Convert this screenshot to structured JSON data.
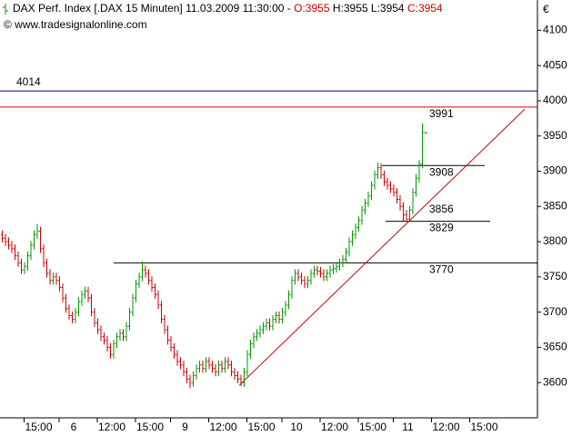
{
  "chart_data": {
    "type": "ohlc",
    "header": {
      "title": "DAX Perf. Index [.DAX  15 Minuten]",
      "date": "11.03.2009 11:30:00",
      "separator": "-",
      "ohlc": [
        "O:3955",
        "H:3955",
        "L:3954",
        "C:3954"
      ],
      "ohlc_colors": [
        "#cc0000",
        "#000000",
        "#000000",
        "#cc0000"
      ]
    },
    "source": "© www.tradesignalonline.com",
    "currency": "€",
    "up_color": "#009900",
    "down_color": "#cc0000",
    "ylim": [
      3550,
      4143
    ],
    "yticks": [
      3600,
      3650,
      3700,
      3750,
      3800,
      3850,
      3900,
      3950,
      4000,
      4050,
      4100
    ],
    "categories": [
      null,
      null,
      null,
      null,
      null,
      null,
      null,
      "15:00",
      null,
      null,
      null,
      null,
      null,
      null,
      null,
      null,
      null,
      null,
      "6",
      null,
      null,
      null,
      null,
      null,
      null,
      null,
      null,
      null,
      null,
      null,
      "12:00",
      null,
      null,
      null,
      null,
      null,
      null,
      null,
      null,
      null,
      null,
      null,
      "15:00",
      null,
      null,
      null,
      null,
      null,
      null,
      null,
      null,
      null,
      null,
      "9",
      null,
      null,
      null,
      null,
      null,
      null,
      null,
      null,
      null,
      null,
      null,
      "12:00",
      null,
      null,
      null,
      null,
      null,
      null,
      null,
      null,
      null,
      null,
      null,
      "15:00",
      null,
      null,
      null,
      null,
      null,
      null,
      null,
      null,
      null,
      null,
      "10",
      null,
      null,
      null,
      null,
      null,
      null,
      null,
      null,
      null,
      null,
      null,
      "12:00",
      null,
      null,
      null,
      null,
      null,
      null,
      null,
      null,
      null,
      null,
      null,
      "15:00",
      null,
      null,
      null,
      null,
      null,
      null,
      null,
      null,
      null,
      null,
      "11",
      null,
      null,
      null,
      null,
      null,
      null,
      null,
      null,
      null,
      null,
      null,
      "12:00",
      null,
      null,
      null,
      null,
      null,
      null,
      null,
      null,
      null,
      null,
      null,
      "15:00"
    ],
    "open": [
      3810,
      3805,
      3800,
      3795,
      3790,
      3780,
      3770,
      3760,
      3765,
      3780,
      3795,
      3810,
      3815,
      3790,
      3770,
      3755,
      3745,
      3750,
      3745,
      3735,
      3720,
      3705,
      3695,
      3690,
      3700,
      3715,
      3725,
      3730,
      3720,
      3700,
      3685,
      3675,
      3665,
      3660,
      3650,
      3640,
      3655,
      3665,
      3670,
      3665,
      3680,
      3700,
      3720,
      3740,
      3750,
      3760,
      3755,
      3745,
      3735,
      3725,
      3710,
      3690,
      3675,
      3660,
      3650,
      3640,
      3630,
      3625,
      3615,
      3605,
      3600,
      3610,
      3620,
      3625,
      3620,
      3630,
      3625,
      3620,
      3615,
      3625,
      3620,
      3630,
      3625,
      3615,
      3610,
      3605,
      3600,
      3615,
      3640,
      3655,
      3665,
      3670,
      3675,
      3680,
      3685,
      3680,
      3690,
      3695,
      3690,
      3700,
      3710,
      3725,
      3745,
      3755,
      3750,
      3745,
      3740,
      3745,
      3755,
      3760,
      3758,
      3755,
      3750,
      3755,
      3760,
      3762,
      3765,
      3770,
      3775,
      3785,
      3800,
      3810,
      3820,
      3830,
      3845,
      3855,
      3865,
      3880,
      3895,
      3905,
      3895,
      3885,
      3880,
      3875,
      3870,
      3860,
      3850,
      3838,
      3832,
      3845,
      3870,
      3890,
      3910,
      3955,
      null,
      null,
      null,
      null,
      null,
      null,
      null,
      null,
      null,
      null,
      null,
      null,
      null,
      null
    ],
    "high": [
      3816,
      3811,
      3806,
      3801,
      3796,
      3786,
      3776,
      3771,
      3786,
      3801,
      3816,
      3825,
      3821,
      3796,
      3776,
      3761,
      3756,
      3756,
      3751,
      3741,
      3726,
      3711,
      3701,
      3706,
      3721,
      3731,
      3736,
      3736,
      3726,
      3706,
      3691,
      3681,
      3671,
      3666,
      3656,
      3661,
      3671,
      3676,
      3676,
      3686,
      3706,
      3726,
      3746,
      3756,
      3772,
      3766,
      3761,
      3751,
      3741,
      3731,
      3716,
      3696,
      3681,
      3666,
      3656,
      3646,
      3636,
      3631,
      3621,
      3611,
      3616,
      3626,
      3631,
      3631,
      3636,
      3636,
      3631,
      3626,
      3631,
      3631,
      3636,
      3636,
      3631,
      3621,
      3616,
      3611,
      3621,
      3646,
      3661,
      3671,
      3676,
      3681,
      3686,
      3691,
      3691,
      3696,
      3701,
      3701,
      3706,
      3716,
      3731,
      3751,
      3761,
      3761,
      3756,
      3751,
      3751,
      3761,
      3766,
      3766,
      3764,
      3761,
      3761,
      3766,
      3768,
      3771,
      3776,
      3781,
      3791,
      3806,
      3816,
      3826,
      3836,
      3851,
      3861,
      3871,
      3886,
      3901,
      3912,
      3911,
      3901,
      3891,
      3886,
      3881,
      3876,
      3866,
      3856,
      3845,
      3851,
      3876,
      3896,
      3916,
      3968,
      3955,
      null,
      null,
      null,
      null,
      null,
      null,
      null,
      null,
      null,
      null,
      null,
      null,
      null,
      null
    ],
    "low": [
      3799,
      3794,
      3789,
      3784,
      3774,
      3764,
      3754,
      3754,
      3759,
      3774,
      3789,
      3804,
      3784,
      3764,
      3749,
      3739,
      3739,
      3739,
      3729,
      3714,
      3699,
      3689,
      3684,
      3684,
      3694,
      3709,
      3719,
      3714,
      3694,
      3679,
      3669,
      3659,
      3654,
      3644,
      3634,
      3634,
      3649,
      3659,
      3659,
      3659,
      3674,
      3694,
      3714,
      3734,
      3744,
      3749,
      3739,
      3729,
      3719,
      3704,
      3684,
      3669,
      3654,
      3644,
      3634,
      3624,
      3619,
      3609,
      3599,
      3592,
      3594,
      3604,
      3614,
      3614,
      3614,
      3619,
      3614,
      3609,
      3609,
      3614,
      3614,
      3619,
      3609,
      3604,
      3599,
      3595,
      3594,
      3609,
      3634,
      3649,
      3659,
      3664,
      3669,
      3674,
      3674,
      3674,
      3684,
      3684,
      3684,
      3694,
      3704,
      3719,
      3739,
      3744,
      3739,
      3734,
      3734,
      3739,
      3749,
      3752,
      3749,
      3744,
      3744,
      3749,
      3754,
      3756,
      3759,
      3764,
      3769,
      3779,
      3794,
      3804,
      3814,
      3824,
      3839,
      3849,
      3859,
      3874,
      3889,
      3889,
      3879,
      3874,
      3869,
      3864,
      3854,
      3844,
      3829,
      3828,
      3829,
      3839,
      3864,
      3884,
      3904,
      3954,
      null,
      null,
      null,
      null,
      null,
      null,
      null,
      null,
      null,
      null,
      null,
      null,
      null,
      null
    ],
    "close": [
      3805,
      3800,
      3795,
      3790,
      3780,
      3770,
      3760,
      3765,
      3780,
      3795,
      3810,
      3815,
      3790,
      3770,
      3755,
      3745,
      3750,
      3745,
      3735,
      3720,
      3705,
      3695,
      3690,
      3700,
      3715,
      3725,
      3730,
      3720,
      3700,
      3685,
      3675,
      3665,
      3660,
      3650,
      3640,
      3655,
      3665,
      3670,
      3665,
      3680,
      3700,
      3720,
      3740,
      3750,
      3760,
      3755,
      3745,
      3735,
      3725,
      3710,
      3690,
      3675,
      3660,
      3650,
      3640,
      3630,
      3625,
      3615,
      3605,
      3600,
      3610,
      3620,
      3625,
      3620,
      3630,
      3625,
      3620,
      3615,
      3625,
      3620,
      3630,
      3625,
      3615,
      3610,
      3605,
      3600,
      3615,
      3640,
      3655,
      3665,
      3670,
      3675,
      3680,
      3685,
      3680,
      3690,
      3695,
      3690,
      3700,
      3710,
      3725,
      3745,
      3755,
      3750,
      3745,
      3740,
      3745,
      3755,
      3760,
      3758,
      3755,
      3750,
      3755,
      3760,
      3762,
      3765,
      3770,
      3775,
      3785,
      3800,
      3810,
      3820,
      3830,
      3845,
      3855,
      3865,
      3880,
      3895,
      3905,
      3895,
      3885,
      3880,
      3875,
      3870,
      3860,
      3850,
      3838,
      3832,
      3845,
      3870,
      3890,
      3910,
      3955,
      3954,
      null,
      null,
      null,
      null,
      null,
      null,
      null,
      null,
      null,
      null,
      null,
      null,
      null,
      null
    ],
    "levels": [
      {
        "value": 4014,
        "color": "#000080",
        "label_color": "#0000cc"
      },
      {
        "value": 3991,
        "color": "#cc0000",
        "label_color": "#cc0000"
      },
      {
        "value": 3908,
        "color": "#000000",
        "label_color": "#000000"
      },
      {
        "value": 3829,
        "color": "#000000",
        "label_color": "#000000"
      },
      {
        "value": 3770,
        "color": "#000000",
        "label_color": "#000000"
      }
    ],
    "annotations": [
      {
        "value": 3856,
        "color": "#cc0000"
      }
    ],
    "trendline": {
      "values": [
        3596,
        3988
      ],
      "color": "#cc0000"
    }
  }
}
